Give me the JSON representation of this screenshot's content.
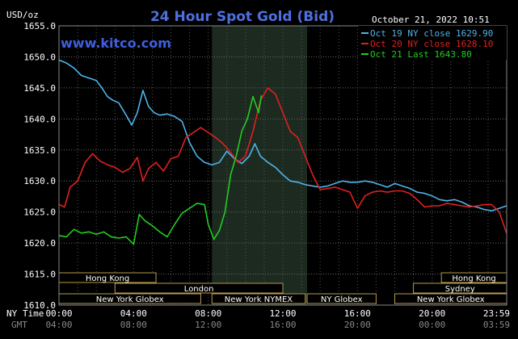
{
  "chart_data": {
    "type": "line",
    "title": "24 Hour Spot Gold (Bid)",
    "watermark": "www.kitco.com",
    "timestamp": "October 21, 2022 10:51",
    "ylabel": "USD/oz",
    "ylim": [
      1610,
      1655
    ],
    "yticks": [
      "1655.0",
      "1650.0",
      "1645.0",
      "1640.0",
      "1635.0",
      "1630.0",
      "1625.0",
      "1620.0",
      "1615.0",
      "1610.0"
    ],
    "xlim_hours": [
      0,
      24
    ],
    "x_label_ny": "NY Time",
    "x_label_gmt": "GMT",
    "xticks_ny": [
      "00:00",
      "04:00",
      "08:00",
      "12:00",
      "16:00",
      "20:00",
      "23:59"
    ],
    "xticks_gmt": [
      "04:00",
      "08:00",
      "12:00",
      "16:00",
      "20:00",
      "00:00",
      "03:59"
    ],
    "shaded_session_hours": [
      8.2,
      13.3
    ],
    "grid": true,
    "legend_position": "top-right",
    "series": [
      {
        "name": "Oct 19 NY close 1629.90",
        "color": "#4fb3e8",
        "x": [
          0,
          0.4,
          0.8,
          1.2,
          1.6,
          2.0,
          2.3,
          2.6,
          2.9,
          3.2,
          3.6,
          3.9,
          4.2,
          4.5,
          4.8,
          5.1,
          5.4,
          5.8,
          6.2,
          6.6,
          7.0,
          7.4,
          7.8,
          8.2,
          8.6,
          9.0,
          9.4,
          9.8,
          10.2,
          10.5,
          10.8,
          11.2,
          11.6,
          12.0,
          12.4,
          12.8,
          13.2,
          13.6,
          14.0,
          14.4,
          14.8,
          15.2,
          15.6,
          16.0,
          16.4,
          16.8,
          17.2,
          17.6,
          18.0,
          18.4,
          18.8,
          19.2,
          19.6,
          20.0,
          20.4,
          20.8,
          21.2,
          21.6,
          22.0,
          22.4,
          22.8,
          23.2,
          23.6,
          23.99
        ],
        "values": [
          1649.5,
          1649.0,
          1648.2,
          1647.0,
          1646.6,
          1646.2,
          1645.0,
          1643.6,
          1643.0,
          1642.6,
          1640.6,
          1639.0,
          1641.0,
          1644.6,
          1642.0,
          1641.0,
          1640.6,
          1640.8,
          1640.4,
          1639.6,
          1636.2,
          1634.0,
          1633.0,
          1632.6,
          1633.0,
          1634.8,
          1633.6,
          1632.8,
          1634.0,
          1636.0,
          1634.0,
          1633.0,
          1632.2,
          1631.0,
          1630.0,
          1629.8,
          1629.4,
          1629.2,
          1629.0,
          1629.2,
          1629.6,
          1630.0,
          1629.8,
          1629.8,
          1630.0,
          1629.8,
          1629.4,
          1629.0,
          1629.6,
          1629.2,
          1628.8,
          1628.2,
          1628.0,
          1627.6,
          1627.0,
          1626.8,
          1627.0,
          1626.6,
          1626.0,
          1625.8,
          1625.4,
          1625.2,
          1625.6,
          1626.0
        ]
      },
      {
        "name": "Oct 20 NY close 1628.10",
        "color": "#e02020",
        "x": [
          0,
          0.3,
          0.6,
          1.0,
          1.4,
          1.8,
          2.2,
          2.6,
          3.0,
          3.4,
          3.8,
          4.2,
          4.5,
          4.8,
          5.2,
          5.6,
          6.0,
          6.4,
          6.8,
          7.2,
          7.6,
          8.0,
          8.4,
          8.8,
          9.2,
          9.6,
          10.0,
          10.4,
          10.8,
          11.2,
          11.6,
          12.0,
          12.4,
          12.8,
          13.2,
          13.6,
          14.0,
          14.4,
          14.8,
          15.2,
          15.6,
          16.0,
          16.4,
          16.8,
          17.2,
          17.6,
          18.0,
          18.4,
          18.8,
          19.2,
          19.6,
          20.0,
          20.4,
          20.8,
          21.2,
          21.6,
          22.0,
          22.4,
          22.8,
          23.2,
          23.6,
          23.99
        ],
        "values": [
          1626.2,
          1625.8,
          1629.0,
          1630.0,
          1633.0,
          1634.4,
          1633.2,
          1632.6,
          1632.2,
          1631.4,
          1632.0,
          1633.8,
          1630.0,
          1632.0,
          1633.0,
          1631.6,
          1633.6,
          1634.0,
          1637.0,
          1637.8,
          1638.6,
          1637.8,
          1637.0,
          1636.0,
          1634.6,
          1633.0,
          1634.0,
          1638.0,
          1643.0,
          1645.0,
          1644.0,
          1641.0,
          1638.0,
          1637.0,
          1634.0,
          1631.0,
          1628.6,
          1628.8,
          1629.0,
          1628.6,
          1628.2,
          1625.6,
          1627.6,
          1628.2,
          1628.4,
          1628.2,
          1628.4,
          1628.4,
          1628.0,
          1627.0,
          1625.8,
          1626.0,
          1626.0,
          1626.4,
          1626.2,
          1626.0,
          1625.8,
          1626.0,
          1626.2,
          1626.2,
          1625.0,
          1621.6
        ]
      },
      {
        "name": "Oct 21 Last 1643.80",
        "color": "#22cc22",
        "x": [
          0,
          0.4,
          0.8,
          1.2,
          1.6,
          2.0,
          2.4,
          2.8,
          3.2,
          3.6,
          4.0,
          4.3,
          4.6,
          5.0,
          5.4,
          5.8,
          6.2,
          6.6,
          7.0,
          7.4,
          7.8,
          8.0,
          8.3,
          8.6,
          8.9,
          9.2,
          9.5,
          9.8,
          10.1,
          10.4,
          10.7,
          10.85
        ],
        "values": [
          1621.2,
          1621.0,
          1622.2,
          1621.6,
          1621.8,
          1621.4,
          1621.8,
          1621.0,
          1620.8,
          1621.0,
          1619.8,
          1624.6,
          1623.6,
          1622.8,
          1621.8,
          1621.0,
          1623.0,
          1624.8,
          1625.6,
          1626.4,
          1626.2,
          1623.0,
          1620.6,
          1622.0,
          1625.0,
          1631.0,
          1634.0,
          1638.0,
          1640.0,
          1643.6,
          1641.0,
          1643.8
        ]
      }
    ],
    "sessions": [
      {
        "label": "Hong Kong",
        "row": 1,
        "start": 0,
        "end": 5.2
      },
      {
        "label": "Hong Kong",
        "row": 1,
        "start": 20.5,
        "end": 24
      },
      {
        "label": "London",
        "row": 2,
        "start": 3.0,
        "end": 12.0
      },
      {
        "label": "Sydney",
        "row": 2,
        "start": 19.0,
        "end": 24
      },
      {
        "label": "New York Globex",
        "row": 3,
        "start": 0,
        "end": 7.6
      },
      {
        "label": "New York NYMEX",
        "row": 3,
        "start": 8.2,
        "end": 13.2
      },
      {
        "label": "NY Globex",
        "row": 3,
        "start": 13.3,
        "end": 17.0
      },
      {
        "label": "New York Globex",
        "row": 3,
        "start": 18.0,
        "end": 24
      }
    ]
  }
}
